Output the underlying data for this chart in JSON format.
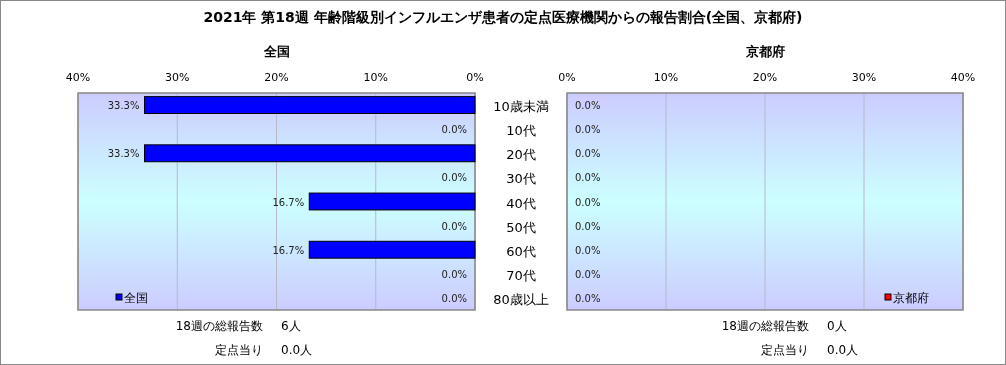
{
  "chart_data": [
    {
      "type": "bar",
      "orientation": "horizontal",
      "title": "2021年 第18週 年齢階級別インフルエンザ患者の定点医療機関からの報告割合(全国、京都府)",
      "subtitle": "全国",
      "categories": [
        "10歳未満",
        "10代",
        "20代",
        "30代",
        "40代",
        "50代",
        "60代",
        "70代",
        "80歳以上"
      ],
      "series": [
        {
          "name": "全国",
          "color": "#0000ff",
          "values": [
            33.3,
            0.0,
            33.3,
            0.0,
            16.7,
            0.0,
            16.7,
            0.0,
            0.0
          ],
          "value_labels": [
            "33.3%",
            "0.0%",
            "33.3%",
            "0.0%",
            "16.7%",
            "0.0%",
            "16.7%",
            "0.0%",
            "0.0%"
          ]
        }
      ],
      "xlim": [
        40,
        0
      ],
      "xticks": [
        {
          "value": 40,
          "label": "40%"
        },
        {
          "value": 30,
          "label": "30%"
        },
        {
          "value": 20,
          "label": "20%"
        },
        {
          "value": 10,
          "label": "10%"
        },
        {
          "value": 0,
          "label": "0%"
        }
      ],
      "grid": "x",
      "legend": "bottom left",
      "annotations": [
        "18週の総報告数 6人",
        "定点当り 0.0人"
      ]
    },
    {
      "type": "bar",
      "orientation": "horizontal",
      "title": "京都府",
      "series": [
        {
          "name": "京都府",
          "color": "#ff0000",
          "values": [
            0.0,
            0.0,
            0.0,
            0.0,
            0.0,
            0.0,
            0.0,
            0.0,
            0.0
          ],
          "value_labels": [
            "0.0%",
            "0.0%",
            "0.0%",
            "0.0%",
            "0.0%",
            "0.0%",
            "0.0%",
            "0.0%",
            "0.0%"
          ]
        }
      ],
      "xlim": [
        0,
        40
      ],
      "xticks": [
        {
          "value": 0,
          "label": "0%"
        },
        {
          "value": 10,
          "label": "10%"
        },
        {
          "value": 20,
          "label": "20%"
        },
        {
          "value": 30,
          "label": "30%"
        },
        {
          "value": 40,
          "label": "40%"
        }
      ],
      "grid": "x",
      "legend": "bottom right",
      "tick_labels": "x",
      "annotations": [
        "18週の総報告数 0人",
        "定点当り 0.0人"
      ]
    }
  ]
}
